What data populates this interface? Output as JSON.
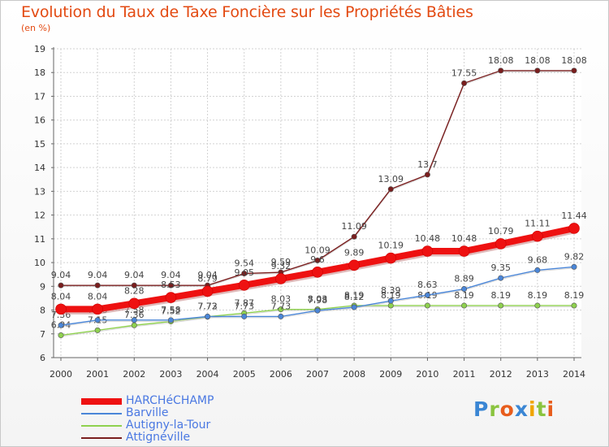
{
  "title": "Evolution du Taux de Taxe Foncière sur les Propriétés Bâties",
  "subtitle": "(en %)",
  "logo": {
    "letters": [
      "P",
      "r",
      "o",
      "x",
      "i",
      "t",
      "i"
    ],
    "colors": [
      "#3a86d4",
      "#8ac43f",
      "#e85d1c",
      "#3a86d4",
      "#f0a500",
      "#8ac43f",
      "#e85d1c"
    ]
  },
  "chart_data": {
    "type": "line",
    "x": [
      "2000",
      "2001",
      "2002",
      "2003",
      "2004",
      "2005",
      "2006",
      "2007",
      "2008",
      "2009",
      "2010",
      "2011",
      "2012",
      "2013",
      "2014"
    ],
    "ylim": [
      6,
      19
    ],
    "yticks": [
      "6",
      "7",
      "8",
      "9",
      "10",
      "11",
      "12",
      "13",
      "14",
      "15",
      "16",
      "17",
      "18",
      "19"
    ],
    "grid": true,
    "series": [
      {
        "name": "Attignéville",
        "color": "#7a1e1e",
        "values": [
          9.04,
          9.04,
          9.04,
          9.04,
          9.04,
          9.54,
          9.59,
          10.09,
          11.09,
          13.09,
          13.7,
          17.55,
          18.08,
          18.08,
          18.08
        ],
        "labels": [
          "9.04",
          "9.04",
          "9.04",
          "9.04",
          "9.04",
          "9.54",
          "9.59",
          "10.09",
          "11.09",
          "13.09",
          "13.7",
          "17.55",
          "18.08",
          "18.08",
          "18.08"
        ]
      },
      {
        "name": "Autigny-la-Tour",
        "color": "#8fd14f",
        "values": [
          6.94,
          7.15,
          7.36,
          7.52,
          7.72,
          7.87,
          8.03,
          8.03,
          8.19,
          8.19,
          8.19,
          8.19,
          8.19,
          8.19,
          8.19
        ],
        "labels": [
          "6.94",
          "7.15",
          "7.36",
          "7.52",
          "7.72",
          "7.87",
          "8.03",
          "8.03",
          "8.19",
          "8.19",
          "8.19",
          "8.19",
          "8.19",
          "8.19",
          "8.19"
        ]
      },
      {
        "name": "Barville",
        "color": "#4a86d8",
        "values": [
          7.36,
          7.58,
          7.58,
          7.58,
          7.73,
          7.73,
          7.73,
          7.98,
          8.12,
          8.39,
          8.63,
          8.89,
          9.35,
          9.68,
          9.82
        ],
        "labels": [
          "7.36",
          "7.58",
          "7.58",
          "7.58",
          "7.73",
          "7.73",
          "7.73",
          "7.98",
          "8.12",
          "8.39",
          "8.63",
          "8.89",
          "9.35",
          "9.68",
          "9.82"
        ]
      },
      {
        "name": "HARCHéCHAMP",
        "color": "#ee1111",
        "values": [
          8.04,
          8.04,
          8.28,
          8.53,
          8.79,
          9.05,
          9.32,
          9.6,
          9.89,
          10.19,
          10.48,
          10.48,
          10.79,
          11.11,
          11.44
        ],
        "labels": [
          "8.04",
          "8.04",
          "8.28",
          "8.53",
          "8.79",
          "9.05",
          "9.32",
          "9.6",
          "9.89",
          "10.19",
          "10.48",
          "10.48",
          "10.79",
          "11.11",
          "11.44"
        ]
      }
    ],
    "legend_order": [
      "HARCHéCHAMP",
      "Barville",
      "Autigny-la-Tour",
      "Attignéville"
    ]
  }
}
